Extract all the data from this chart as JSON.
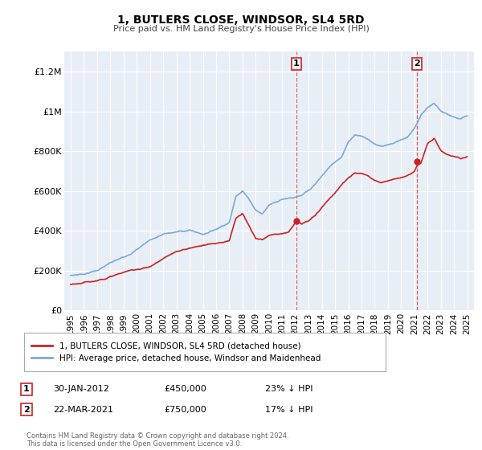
{
  "title": "1, BUTLERS CLOSE, WINDSOR, SL4 5RD",
  "subtitle": "Price paid vs. HM Land Registry's House Price Index (HPI)",
  "ylabel_ticks": [
    "£0",
    "£200K",
    "£400K",
    "£600K",
    "£800K",
    "£1M",
    "£1.2M"
  ],
  "ytick_values": [
    0,
    200000,
    400000,
    600000,
    800000,
    1000000,
    1200000
  ],
  "ylim": [
    0,
    1300000
  ],
  "xlim_start": 1994.5,
  "xlim_end": 2025.5,
  "hpi_color": "#7aaadd",
  "price_color": "#cc2222",
  "sale1_x": 2012.08,
  "sale1_y": 450000,
  "sale2_x": 2021.22,
  "sale2_y": 750000,
  "legend_line1": "1, BUTLERS CLOSE, WINDSOR, SL4 5RD (detached house)",
  "legend_line2": "HPI: Average price, detached house, Windsor and Maidenhead",
  "footer": "Contains HM Land Registry data © Crown copyright and database right 2024.\nThis data is licensed under the Open Government Licence v3.0.",
  "bg_color": "#e8eef5",
  "grid_color": "#ffffff"
}
